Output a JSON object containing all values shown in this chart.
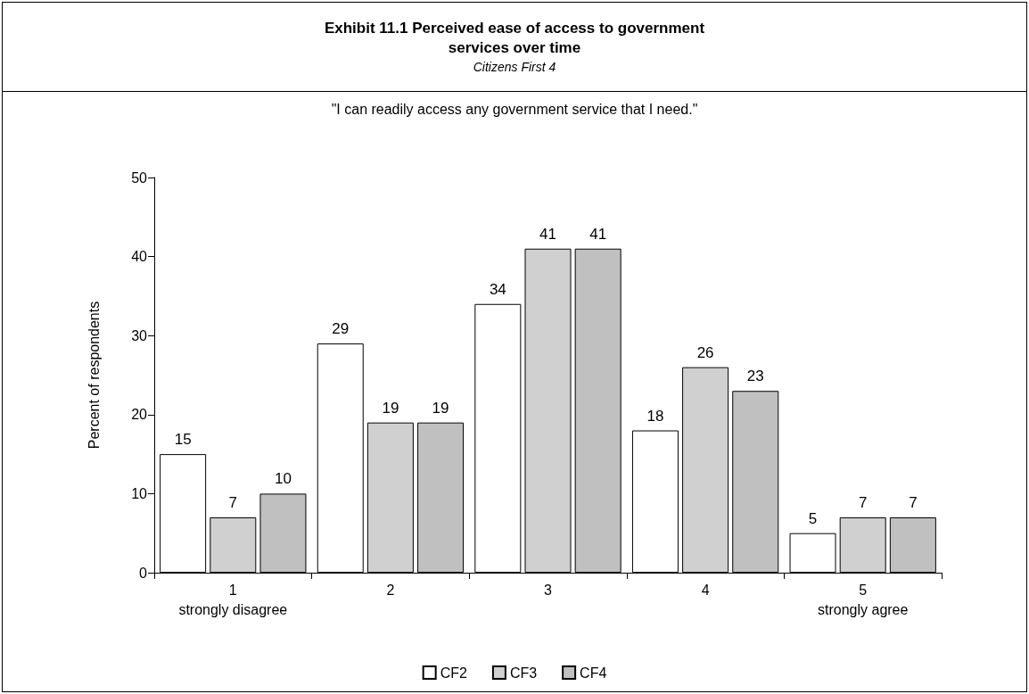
{
  "chart_data": {
    "type": "bar",
    "title": "Exhibit 11.1  Perceived ease of access to government services over time",
    "subtitle": "Citizens First 4",
    "annotations": [
      "\"I can readily access any government service that I need.\""
    ],
    "ylabel": "Percent of respondents",
    "categories": [
      "1\nstrongly disagree",
      "2",
      "3",
      "4",
      "5\nstrongly agree"
    ],
    "series": [
      {
        "name": "CF2",
        "color": "#ffffff",
        "values": [
          15,
          29,
          34,
          18,
          5
        ]
      },
      {
        "name": "CF3",
        "color": "#d0d0d0",
        "values": [
          7,
          19,
          41,
          26,
          7
        ]
      },
      {
        "name": "CF4",
        "color": "#c0c0c0",
        "values": [
          10,
          19,
          41,
          23,
          7
        ]
      }
    ],
    "ylim": [
      0,
      50
    ],
    "yticks": [
      0,
      10,
      20,
      30,
      40,
      50
    ],
    "grid": false,
    "legend": "bottom",
    "data_labels": true
  }
}
